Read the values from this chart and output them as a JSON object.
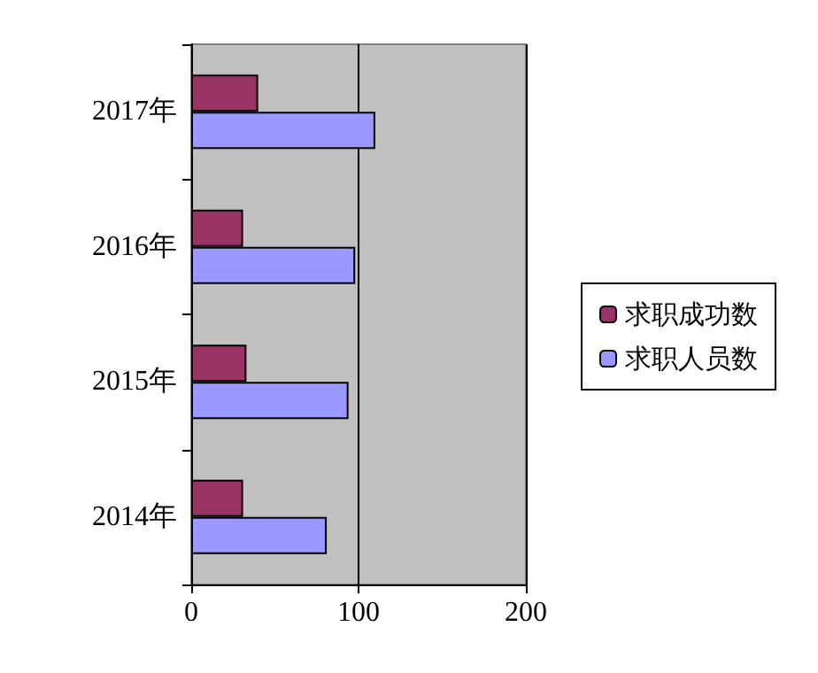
{
  "chart_data": {
    "type": "bar",
    "orientation": "horizontal",
    "categories": [
      "2017年",
      "2016年",
      "2015年",
      "2014年"
    ],
    "series": [
      {
        "name": "求职成功数",
        "color": "#993366",
        "values": [
          40,
          31,
          33,
          31
        ]
      },
      {
        "name": "求职人员数",
        "color": "#9999ff",
        "values": [
          110,
          98,
          94,
          81
        ]
      }
    ],
    "xlim": [
      0,
      200
    ],
    "xticks": [
      0,
      100,
      200
    ],
    "grid": "x",
    "legend": "right"
  }
}
